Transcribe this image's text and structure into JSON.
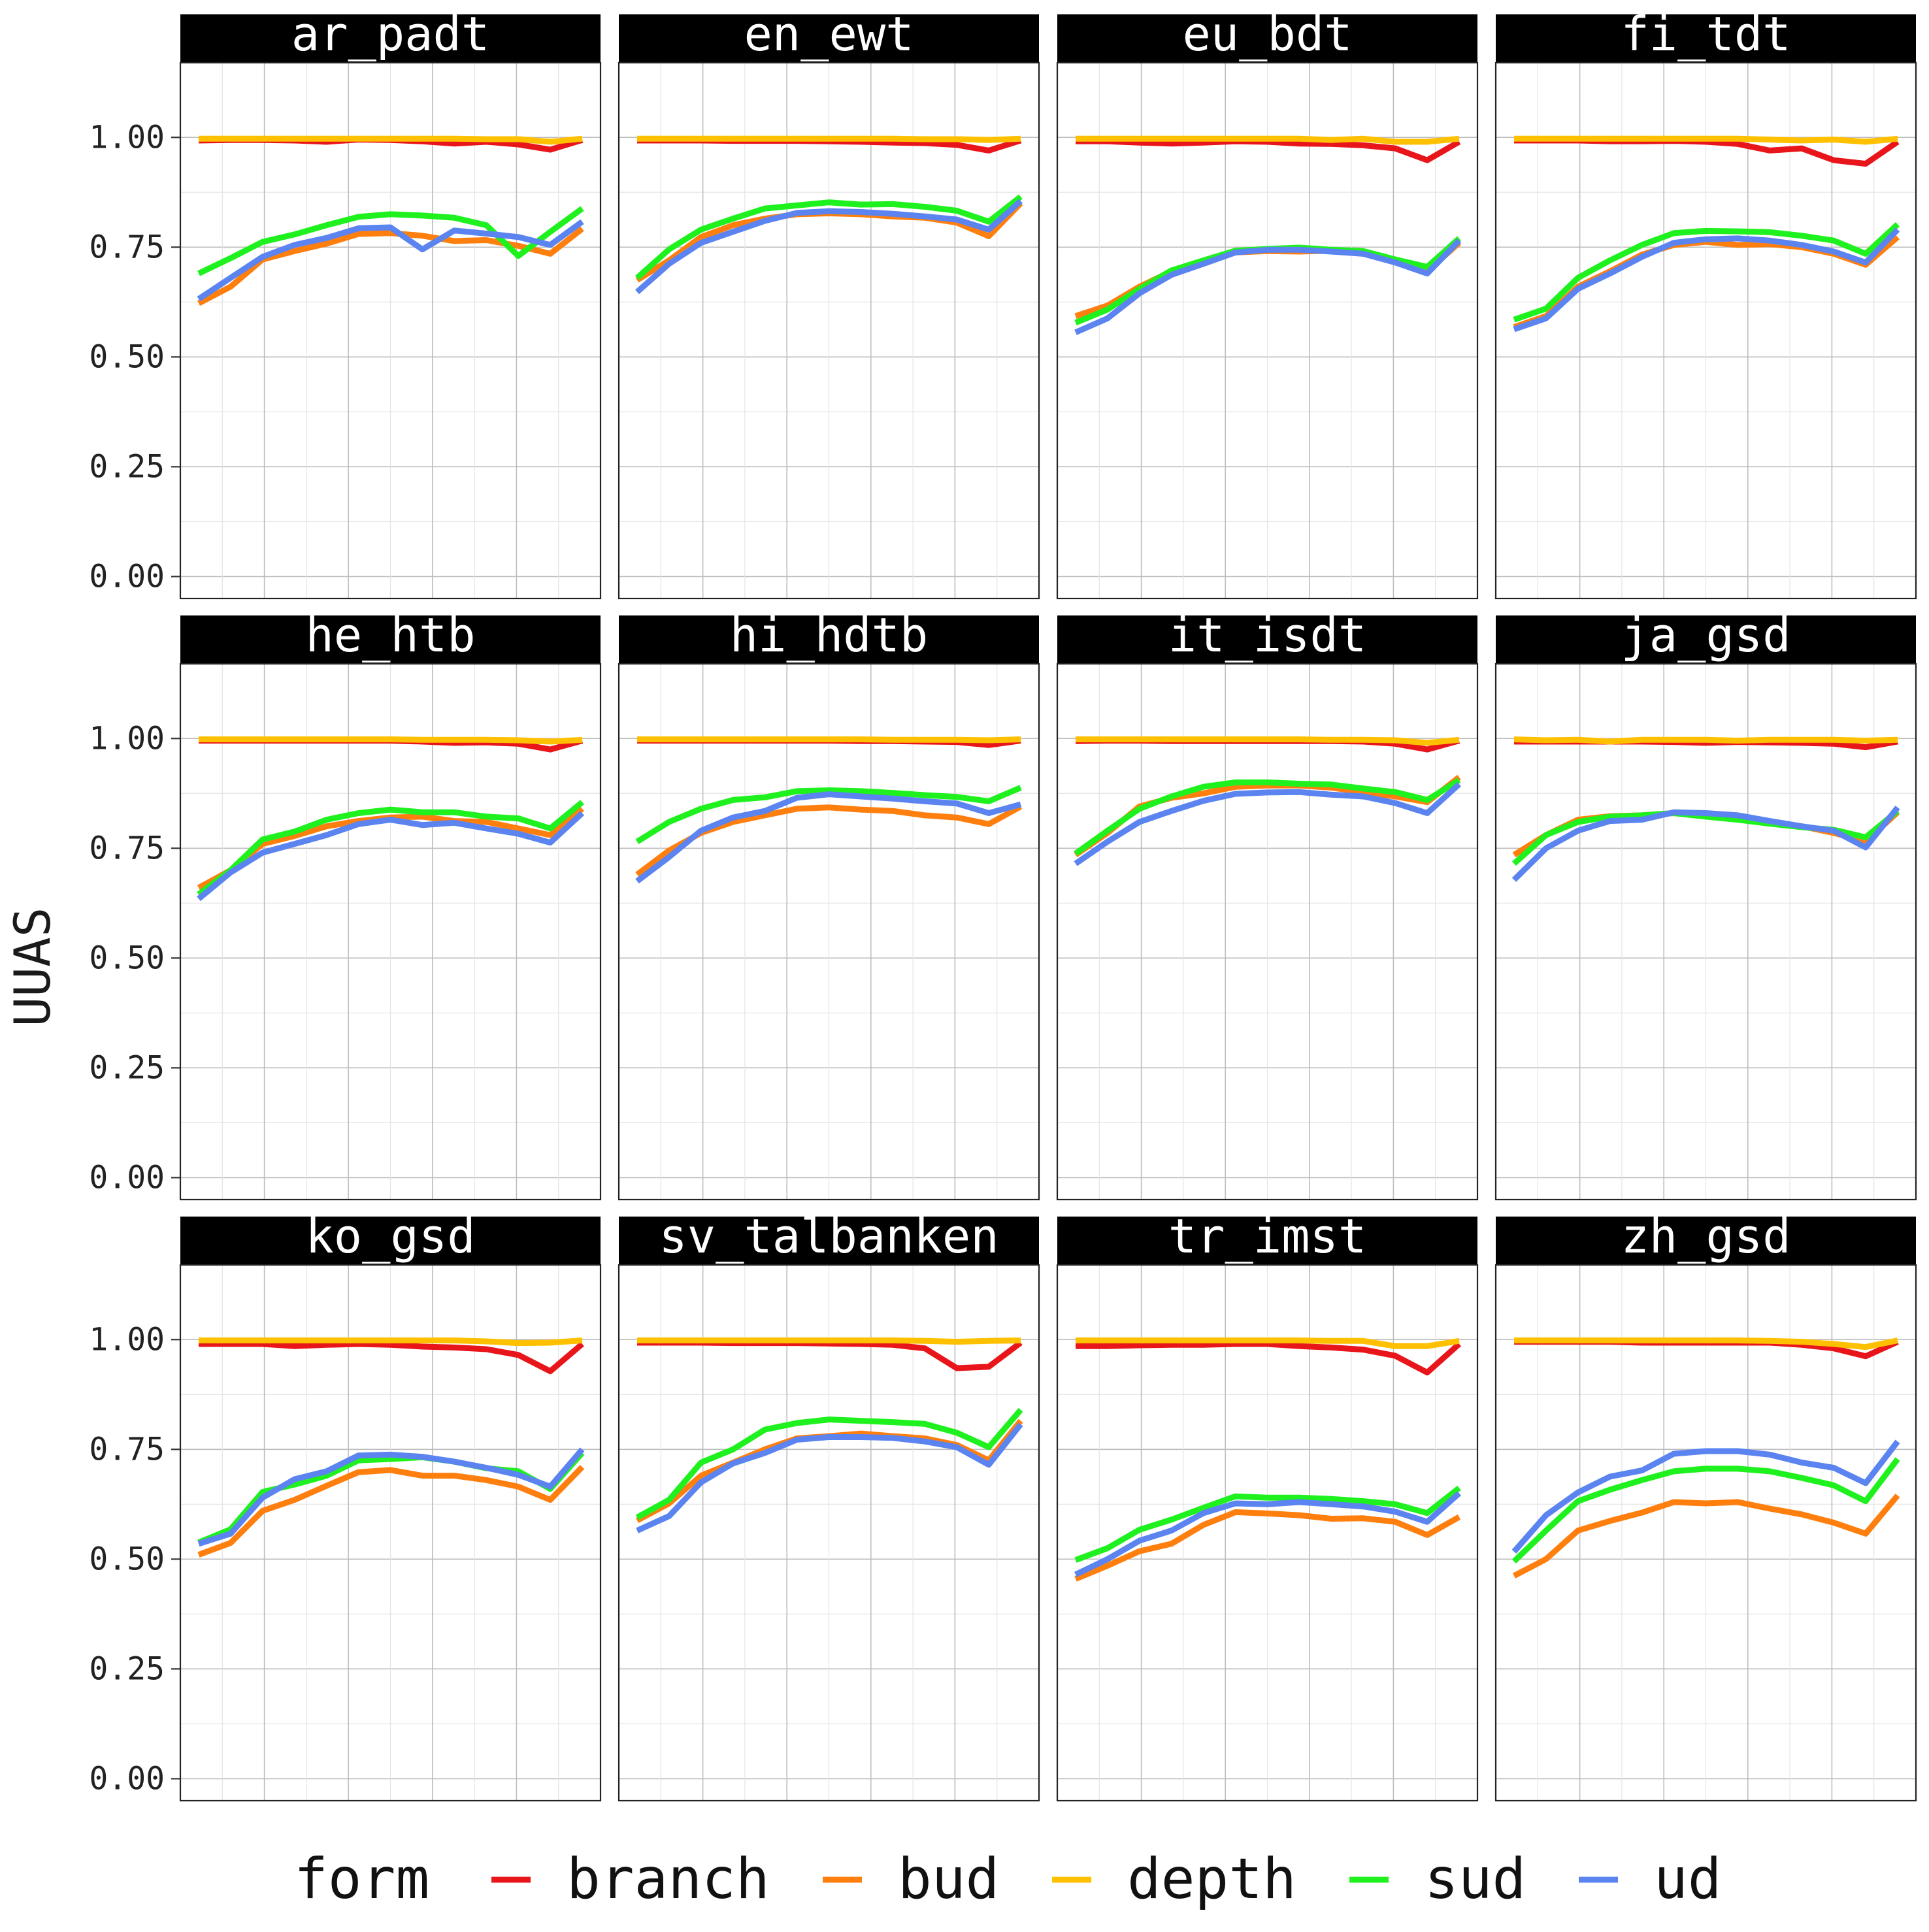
{
  "chart_data": {
    "type": "line",
    "ylabel": "UUAS",
    "ylim": [
      -0.05,
      1.17
    ],
    "y_ticks": [
      "0.00",
      "0.25",
      "0.50",
      "0.75",
      "1.00"
    ],
    "grid": true,
    "facet_layout": "4 columns x 3 rows",
    "legend": {
      "title": "form",
      "position": "bottom",
      "entries": [
        "branch",
        "bud",
        "depth",
        "sud",
        "ud"
      ]
    },
    "series_colors": {
      "branch": "#e8161b",
      "bud": "#ff7f0e",
      "depth": "#ffc000",
      "sud": "#1ff11f",
      "ud": "#5b84f0"
    },
    "facets": [
      {
        "title": "ar_padt",
        "series": {
          "branch": [
            0.993,
            0.994,
            0.994,
            0.993,
            0.99,
            0.995,
            0.994,
            0.991,
            0.986,
            0.99,
            0.984,
            0.972,
            0.994
          ],
          "depth": [
            0.997,
            0.997,
            0.997,
            0.997,
            0.997,
            0.997,
            0.997,
            0.997,
            0.997,
            0.996,
            0.996,
            0.99,
            0.997
          ],
          "bud": [
            0.622,
            0.66,
            0.722,
            0.741,
            0.758,
            0.78,
            0.782,
            0.776,
            0.764,
            0.766,
            0.753,
            0.735,
            0.792
          ],
          "sud": [
            0.69,
            0.725,
            0.762,
            0.779,
            0.8,
            0.819,
            0.825,
            0.822,
            0.817,
            0.8,
            0.73,
            0.785,
            0.838
          ],
          "ud": [
            0.632,
            0.68,
            0.728,
            0.755,
            0.771,
            0.793,
            0.795,
            0.745,
            0.788,
            0.781,
            0.773,
            0.755,
            0.808
          ]
        }
      },
      {
        "title": "en_ewt",
        "series": {
          "branch": [
            0.993,
            0.993,
            0.993,
            0.992,
            0.992,
            0.992,
            0.991,
            0.99,
            0.988,
            0.987,
            0.983,
            0.97,
            0.993
          ],
          "depth": [
            0.997,
            0.997,
            0.997,
            0.997,
            0.997,
            0.997,
            0.997,
            0.997,
            0.997,
            0.996,
            0.996,
            0.994,
            0.997
          ],
          "bud": [
            0.675,
            0.72,
            0.773,
            0.8,
            0.815,
            0.825,
            0.827,
            0.825,
            0.82,
            0.817,
            0.806,
            0.775,
            0.85
          ],
          "sud": [
            0.68,
            0.745,
            0.79,
            0.815,
            0.838,
            0.845,
            0.852,
            0.847,
            0.848,
            0.842,
            0.833,
            0.808,
            0.865
          ],
          "ud": [
            0.648,
            0.712,
            0.76,
            0.785,
            0.81,
            0.828,
            0.832,
            0.83,
            0.826,
            0.82,
            0.813,
            0.79,
            0.855
          ]
        }
      },
      {
        "title": "eu_bdt",
        "series": {
          "branch": [
            0.991,
            0.991,
            0.988,
            0.986,
            0.988,
            0.991,
            0.99,
            0.986,
            0.985,
            0.982,
            0.975,
            0.948,
            0.99
          ],
          "depth": [
            0.997,
            0.997,
            0.997,
            0.997,
            0.997,
            0.997,
            0.997,
            0.997,
            0.994,
            0.997,
            0.99,
            0.99,
            0.997
          ],
          "bud": [
            0.593,
            0.617,
            0.66,
            0.695,
            0.718,
            0.738,
            0.741,
            0.74,
            0.742,
            0.735,
            0.722,
            0.695,
            0.76
          ],
          "sud": [
            0.578,
            0.608,
            0.655,
            0.697,
            0.72,
            0.742,
            0.746,
            0.749,
            0.744,
            0.741,
            0.722,
            0.705,
            0.77
          ],
          "ud": [
            0.556,
            0.588,
            0.645,
            0.687,
            0.712,
            0.738,
            0.744,
            0.744,
            0.74,
            0.735,
            0.715,
            0.69,
            0.765
          ]
        }
      },
      {
        "title": "fi_tdt",
        "series": {
          "branch": [
            0.993,
            0.993,
            0.993,
            0.991,
            0.991,
            0.992,
            0.99,
            0.985,
            0.97,
            0.975,
            0.948,
            0.94,
            0.99
          ],
          "depth": [
            0.997,
            0.997,
            0.997,
            0.997,
            0.997,
            0.997,
            0.997,
            0.997,
            0.995,
            0.993,
            0.995,
            0.99,
            0.997
          ],
          "bud": [
            0.568,
            0.593,
            0.66,
            0.695,
            0.733,
            0.755,
            0.762,
            0.755,
            0.757,
            0.75,
            0.735,
            0.71,
            0.773
          ],
          "sud": [
            0.585,
            0.61,
            0.68,
            0.72,
            0.755,
            0.782,
            0.787,
            0.786,
            0.784,
            0.776,
            0.765,
            0.735,
            0.802
          ],
          "ud": [
            0.563,
            0.588,
            0.655,
            0.69,
            0.728,
            0.76,
            0.768,
            0.77,
            0.765,
            0.755,
            0.74,
            0.715,
            0.79
          ]
        }
      },
      {
        "title": "he_htb",
        "series": {
          "branch": [
            0.995,
            0.995,
            0.995,
            0.995,
            0.995,
            0.995,
            0.995,
            0.993,
            0.99,
            0.991,
            0.988,
            0.975,
            0.995
          ],
          "depth": [
            0.998,
            0.998,
            0.998,
            0.998,
            0.998,
            0.998,
            0.998,
            0.997,
            0.997,
            0.997,
            0.996,
            0.993,
            0.997
          ],
          "bud": [
            0.66,
            0.7,
            0.76,
            0.778,
            0.8,
            0.812,
            0.82,
            0.822,
            0.812,
            0.81,
            0.795,
            0.78,
            0.84
          ],
          "sud": [
            0.645,
            0.7,
            0.77,
            0.788,
            0.815,
            0.83,
            0.838,
            0.832,
            0.832,
            0.822,
            0.818,
            0.795,
            0.855
          ],
          "ud": [
            0.635,
            0.695,
            0.74,
            0.76,
            0.78,
            0.805,
            0.815,
            0.803,
            0.808,
            0.795,
            0.783,
            0.763,
            0.83
          ]
        }
      },
      {
        "title": "hi_hdtb",
        "series": {
          "branch": [
            0.995,
            0.995,
            0.995,
            0.995,
            0.995,
            0.995,
            0.995,
            0.994,
            0.994,
            0.993,
            0.992,
            0.985,
            0.995
          ],
          "depth": [
            0.998,
            0.998,
            0.998,
            0.998,
            0.998,
            0.998,
            0.998,
            0.998,
            0.997,
            0.997,
            0.997,
            0.996,
            0.998
          ],
          "bud": [
            0.69,
            0.745,
            0.785,
            0.81,
            0.825,
            0.84,
            0.843,
            0.838,
            0.835,
            0.825,
            0.82,
            0.805,
            0.845
          ],
          "sud": [
            0.765,
            0.81,
            0.84,
            0.86,
            0.866,
            0.88,
            0.882,
            0.88,
            0.876,
            0.871,
            0.867,
            0.857,
            0.888
          ],
          "ud": [
            0.675,
            0.73,
            0.79,
            0.82,
            0.835,
            0.865,
            0.873,
            0.868,
            0.863,
            0.857,
            0.852,
            0.83,
            0.85
          ]
        }
      },
      {
        "title": "it_isdt",
        "series": {
          "branch": [
            0.994,
            0.995,
            0.995,
            0.994,
            0.994,
            0.994,
            0.994,
            0.994,
            0.994,
            0.993,
            0.988,
            0.975,
            0.995
          ],
          "depth": [
            0.998,
            0.998,
            0.998,
            0.998,
            0.998,
            0.998,
            0.998,
            0.998,
            0.997,
            0.997,
            0.996,
            0.99,
            0.997
          ],
          "bud": [
            0.735,
            0.785,
            0.845,
            0.865,
            0.875,
            0.89,
            0.893,
            0.893,
            0.888,
            0.878,
            0.868,
            0.855,
            0.912
          ],
          "sud": [
            0.738,
            0.79,
            0.84,
            0.868,
            0.89,
            0.9,
            0.9,
            0.897,
            0.895,
            0.886,
            0.878,
            0.86,
            0.905
          ],
          "ud": [
            0.715,
            0.765,
            0.81,
            0.835,
            0.858,
            0.874,
            0.877,
            0.878,
            0.872,
            0.868,
            0.853,
            0.83,
            0.896
          ]
        }
      },
      {
        "title": "ja_gsd",
        "series": {
          "branch": [
            0.993,
            0.993,
            0.993,
            0.993,
            0.993,
            0.992,
            0.99,
            0.992,
            0.991,
            0.99,
            0.988,
            0.98,
            0.993
          ],
          "depth": [
            0.998,
            0.996,
            0.997,
            0.993,
            0.997,
            0.997,
            0.997,
            0.995,
            0.997,
            0.997,
            0.997,
            0.995,
            0.997
          ],
          "bud": [
            0.735,
            0.78,
            0.815,
            0.823,
            0.825,
            0.83,
            0.825,
            0.818,
            0.81,
            0.8,
            0.785,
            0.765,
            0.832
          ],
          "sud": [
            0.715,
            0.78,
            0.81,
            0.822,
            0.825,
            0.83,
            0.822,
            0.815,
            0.806,
            0.798,
            0.792,
            0.775,
            0.835
          ],
          "ud": [
            0.678,
            0.75,
            0.79,
            0.812,
            0.815,
            0.832,
            0.83,
            0.825,
            0.812,
            0.8,
            0.79,
            0.752,
            0.843
          ]
        }
      },
      {
        "title": "ko_gsd",
        "series": {
          "branch": [
            0.99,
            0.99,
            0.99,
            0.985,
            0.988,
            0.99,
            0.988,
            0.984,
            0.982,
            0.978,
            0.965,
            0.928,
            0.99
          ],
          "depth": [
            0.998,
            0.998,
            0.998,
            0.998,
            0.998,
            0.998,
            0.998,
            0.998,
            0.998,
            0.996,
            0.992,
            0.993,
            0.998
          ],
          "bud": [
            0.51,
            0.537,
            0.61,
            0.635,
            0.667,
            0.698,
            0.703,
            0.69,
            0.69,
            0.68,
            0.665,
            0.635,
            0.71
          ],
          "sud": [
            0.538,
            0.568,
            0.653,
            0.67,
            0.69,
            0.725,
            0.728,
            0.732,
            0.722,
            0.707,
            0.7,
            0.66,
            0.742
          ],
          "ud": [
            0.535,
            0.558,
            0.64,
            0.682,
            0.7,
            0.736,
            0.738,
            0.733,
            0.722,
            0.708,
            0.692,
            0.665,
            0.75
          ]
        }
      },
      {
        "title": "sv_talbanken",
        "series": {
          "branch": [
            0.993,
            0.993,
            0.993,
            0.992,
            0.992,
            0.992,
            0.991,
            0.99,
            0.988,
            0.98,
            0.935,
            0.938,
            0.993
          ],
          "depth": [
            0.998,
            0.998,
            0.998,
            0.998,
            0.998,
            0.998,
            0.998,
            0.998,
            0.998,
            0.997,
            0.995,
            0.997,
            0.998
          ],
          "bud": [
            0.588,
            0.627,
            0.69,
            0.72,
            0.75,
            0.775,
            0.78,
            0.786,
            0.78,
            0.775,
            0.76,
            0.725,
            0.815
          ],
          "sud": [
            0.595,
            0.635,
            0.72,
            0.75,
            0.795,
            0.81,
            0.818,
            0.815,
            0.812,
            0.808,
            0.788,
            0.755,
            0.84
          ],
          "ud": [
            0.565,
            0.598,
            0.675,
            0.718,
            0.742,
            0.772,
            0.778,
            0.778,
            0.776,
            0.768,
            0.755,
            0.715,
            0.807
          ]
        }
      },
      {
        "title": "tr_imst",
        "series": {
          "branch": [
            0.985,
            0.985,
            0.987,
            0.988,
            0.988,
            0.99,
            0.99,
            0.985,
            0.982,
            0.977,
            0.963,
            0.925,
            0.99
          ],
          "depth": [
            0.998,
            0.998,
            0.998,
            0.998,
            0.998,
            0.998,
            0.998,
            0.998,
            0.997,
            0.997,
            0.985,
            0.985,
            0.997
          ],
          "bud": [
            0.455,
            0.485,
            0.518,
            0.535,
            0.578,
            0.607,
            0.604,
            0.6,
            0.592,
            0.593,
            0.585,
            0.555,
            0.596
          ],
          "sud": [
            0.498,
            0.525,
            0.567,
            0.59,
            0.617,
            0.643,
            0.64,
            0.64,
            0.637,
            0.632,
            0.625,
            0.605,
            0.662
          ],
          "ud": [
            0.465,
            0.5,
            0.542,
            0.565,
            0.605,
            0.627,
            0.625,
            0.63,
            0.625,
            0.62,
            0.608,
            0.585,
            0.65
          ]
        }
      },
      {
        "title": "zh_gsd",
        "series": {
          "branch": [
            0.995,
            0.995,
            0.995,
            0.995,
            0.993,
            0.993,
            0.993,
            0.993,
            0.993,
            0.988,
            0.98,
            0.962,
            0.995
          ],
          "depth": [
            0.998,
            0.998,
            0.998,
            0.998,
            0.998,
            0.998,
            0.998,
            0.998,
            0.997,
            0.995,
            0.99,
            0.983,
            0.998
          ],
          "bud": [
            0.462,
            0.5,
            0.565,
            0.587,
            0.606,
            0.63,
            0.627,
            0.63,
            0.615,
            0.602,
            0.583,
            0.558,
            0.645
          ],
          "sud": [
            0.495,
            0.565,
            0.632,
            0.658,
            0.68,
            0.7,
            0.706,
            0.706,
            0.7,
            0.685,
            0.668,
            0.632,
            0.728
          ],
          "ud": [
            0.517,
            0.6,
            0.652,
            0.688,
            0.702,
            0.74,
            0.746,
            0.746,
            0.738,
            0.72,
            0.708,
            0.673,
            0.768
          ]
        }
      }
    ]
  }
}
